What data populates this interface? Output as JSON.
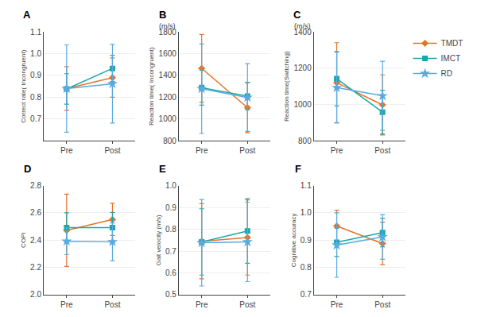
{
  "chart_data": [
    {
      "type": "line",
      "title": "A",
      "ylabel": "Correct rate( Incongruent)",
      "categories": [
        "Pre",
        "Post"
      ],
      "series": [
        {
          "name": "TMDT",
          "color": "#E8722A",
          "marker": "diamond",
          "values": [
            0.84,
            0.89
          ],
          "errors": [
            0.1,
            0.09
          ]
        },
        {
          "name": "IMCT",
          "color": "#1AA8A8",
          "marker": "square",
          "values": [
            0.838,
            0.932
          ],
          "errors": [
            0.07,
            0.06
          ]
        },
        {
          "name": "RD",
          "color": "#5AAAE0",
          "marker": "star",
          "values": [
            0.84,
            0.862
          ],
          "errors": [
            0.2,
            0.18
          ]
        }
      ],
      "ylim": [
        0.6,
        1.1
      ],
      "yticks": [
        0.7,
        0.8,
        0.9,
        {
          "value": 1.0,
          "label": "1.0"
        },
        1.1
      ],
      "grid": true
    },
    {
      "type": "line",
      "title": "B",
      "subtitle": "(m/s)",
      "ylabel": "Reaction time( Incongruent)",
      "categories": [
        "Pre",
        "Post"
      ],
      "series": [
        {
          "name": "TMDT",
          "color": "#E8722A",
          "marker": "diamond",
          "values": [
            1465,
            1105
          ],
          "errors": [
            310,
            230
          ]
        },
        {
          "name": "IMCT",
          "color": "#1AA8A8",
          "marker": "square",
          "values": [
            1288,
            1210
          ],
          "errors": [
            160,
            125
          ]
        },
        {
          "name": "RD",
          "color": "#5AAAE0",
          "marker": "star",
          "values": [
            1278,
            1198
          ],
          "errors": [
            410,
            310
          ]
        }
      ],
      "ylim": [
        800,
        1800
      ],
      "yticks": [
        800,
        1000,
        1200,
        1400,
        1600,
        1800
      ],
      "grid": true
    },
    {
      "type": "line",
      "title": "C",
      "subtitle": "(m/s)",
      "ylabel": "Reaction time(Switching)",
      "categories": [
        "Pre",
        "Post"
      ],
      "series": [
        {
          "name": "TMDT",
          "color": "#E8722A",
          "marker": "diamond",
          "values": [
            1120,
            998
          ],
          "errors": [
            220,
            165
          ]
        },
        {
          "name": "IMCT",
          "color": "#1AA8A8",
          "marker": "square",
          "values": [
            1142,
            958
          ],
          "errors": [
            150,
            120
          ]
        },
        {
          "name": "RD",
          "color": "#5AAAE0",
          "marker": "star",
          "values": [
            1093,
            1048
          ],
          "errors": [
            195,
            190
          ]
        }
      ],
      "ylim": [
        800,
        1400
      ],
      "yticks": [
        800,
        1000,
        1200,
        1400
      ],
      "grid": true,
      "legend": "upper right"
    },
    {
      "type": "line",
      "title": "D",
      "ylabel": "COPl",
      "categories": [
        "Pre",
        "Post"
      ],
      "series": [
        {
          "name": "TMDT",
          "color": "#E8722A",
          "marker": "diamond",
          "values": [
            2.472,
            2.552
          ],
          "errors": [
            0.265,
            0.118
          ]
        },
        {
          "name": "IMCT",
          "color": "#1AA8A8",
          "marker": "square",
          "values": [
            2.492,
            2.492
          ],
          "errors": [
            0.108,
            0.112
          ]
        },
        {
          "name": "RD",
          "color": "#5AAAE0",
          "marker": "star",
          "values": [
            2.392,
            2.388
          ],
          "errors": [
            0.098,
            0.138
          ]
        }
      ],
      "ylim": [
        2.0,
        2.8
      ],
      "yticks": [
        {
          "value": 2.0,
          "label": "2.0"
        },
        2.2,
        2.4,
        2.6,
        2.8
      ],
      "grid": true
    },
    {
      "type": "line",
      "title": "E",
      "ylabel": "Gait velocity (m/s)",
      "categories": [
        "Pre",
        "Post"
      ],
      "series": [
        {
          "name": "TMDT",
          "color": "#E8722A",
          "marker": "diamond",
          "values": [
            0.745,
            0.762
          ],
          "errors": [
            0.172,
            0.172
          ]
        },
        {
          "name": "IMCT",
          "color": "#1AA8A8",
          "marker": "square",
          "values": [
            0.742,
            0.792
          ],
          "errors": [
            0.152,
            0.148
          ]
        },
        {
          "name": "RD",
          "color": "#5AAAE0",
          "marker": "star",
          "values": [
            0.738,
            0.742
          ],
          "errors": [
            0.198,
            0.182
          ]
        }
      ],
      "ylim": [
        0.5,
        1.0
      ],
      "yticks": [
        0.5,
        0.6,
        0.7,
        0.8,
        0.9,
        {
          "value": 1.0,
          "label": "1.0"
        }
      ],
      "grid": true
    },
    {
      "type": "line",
      "title": "F",
      "ylabel": "Cognitive accuracy",
      "categories": [
        "Pre",
        "Post"
      ],
      "series": [
        {
          "name": "TMDT",
          "color": "#E8722A",
          "marker": "diamond",
          "values": [
            0.952,
            0.888
          ],
          "errors": [
            0.058,
            0.078
          ]
        },
        {
          "name": "IMCT",
          "color": "#1AA8A8",
          "marker": "square",
          "values": [
            0.892,
            0.928
          ],
          "errors": [
            0.052,
            0.052
          ]
        },
        {
          "name": "RD",
          "color": "#5AAAE0",
          "marker": "star",
          "values": [
            0.882,
            0.912
          ],
          "errors": [
            0.118,
            0.082
          ]
        }
      ],
      "ylim": [
        0.7,
        1.1
      ],
      "yticks": [
        0.7,
        0.8,
        0.9,
        {
          "value": 1.0,
          "label": "1.0"
        },
        1.1
      ],
      "grid": true
    }
  ]
}
